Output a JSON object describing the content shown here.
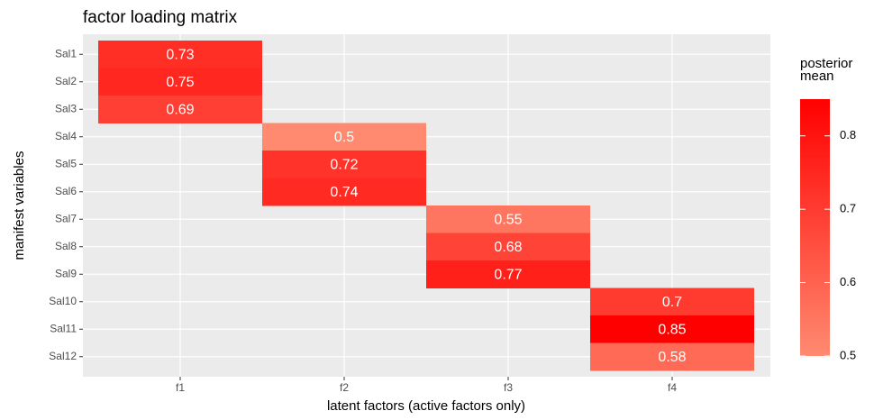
{
  "chart_data": {
    "type": "heatmap",
    "title": "factor loading matrix",
    "xlabel": "latent factors (active factors only)",
    "ylabel": "manifest variables",
    "x": [
      "f1",
      "f2",
      "f3",
      "f4"
    ],
    "y": [
      "Sal1",
      "Sal2",
      "Sal3",
      "Sal4",
      "Sal5",
      "Sal6",
      "Sal7",
      "Sal8",
      "Sal9",
      "Sal10",
      "Sal11",
      "Sal12"
    ],
    "values": [
      [
        0.73,
        null,
        null,
        null
      ],
      [
        0.75,
        null,
        null,
        null
      ],
      [
        0.69,
        null,
        null,
        null
      ],
      [
        null,
        0.5,
        null,
        null
      ],
      [
        null,
        0.72,
        null,
        null
      ],
      [
        null,
        0.74,
        null,
        null
      ],
      [
        null,
        null,
        0.55,
        null
      ],
      [
        null,
        null,
        0.68,
        null
      ],
      [
        null,
        null,
        0.77,
        null
      ],
      [
        null,
        null,
        null,
        0.7
      ],
      [
        null,
        null,
        null,
        0.85
      ],
      [
        null,
        null,
        null,
        0.58
      ]
    ],
    "legend_title": "posterior mean",
    "colorlim": [
      0.5,
      0.85
    ],
    "colorticks": [
      0.5,
      0.6,
      0.7,
      0.8
    ],
    "color_low": "#ff8a70",
    "color_high": "#ff0000",
    "grid": true
  }
}
